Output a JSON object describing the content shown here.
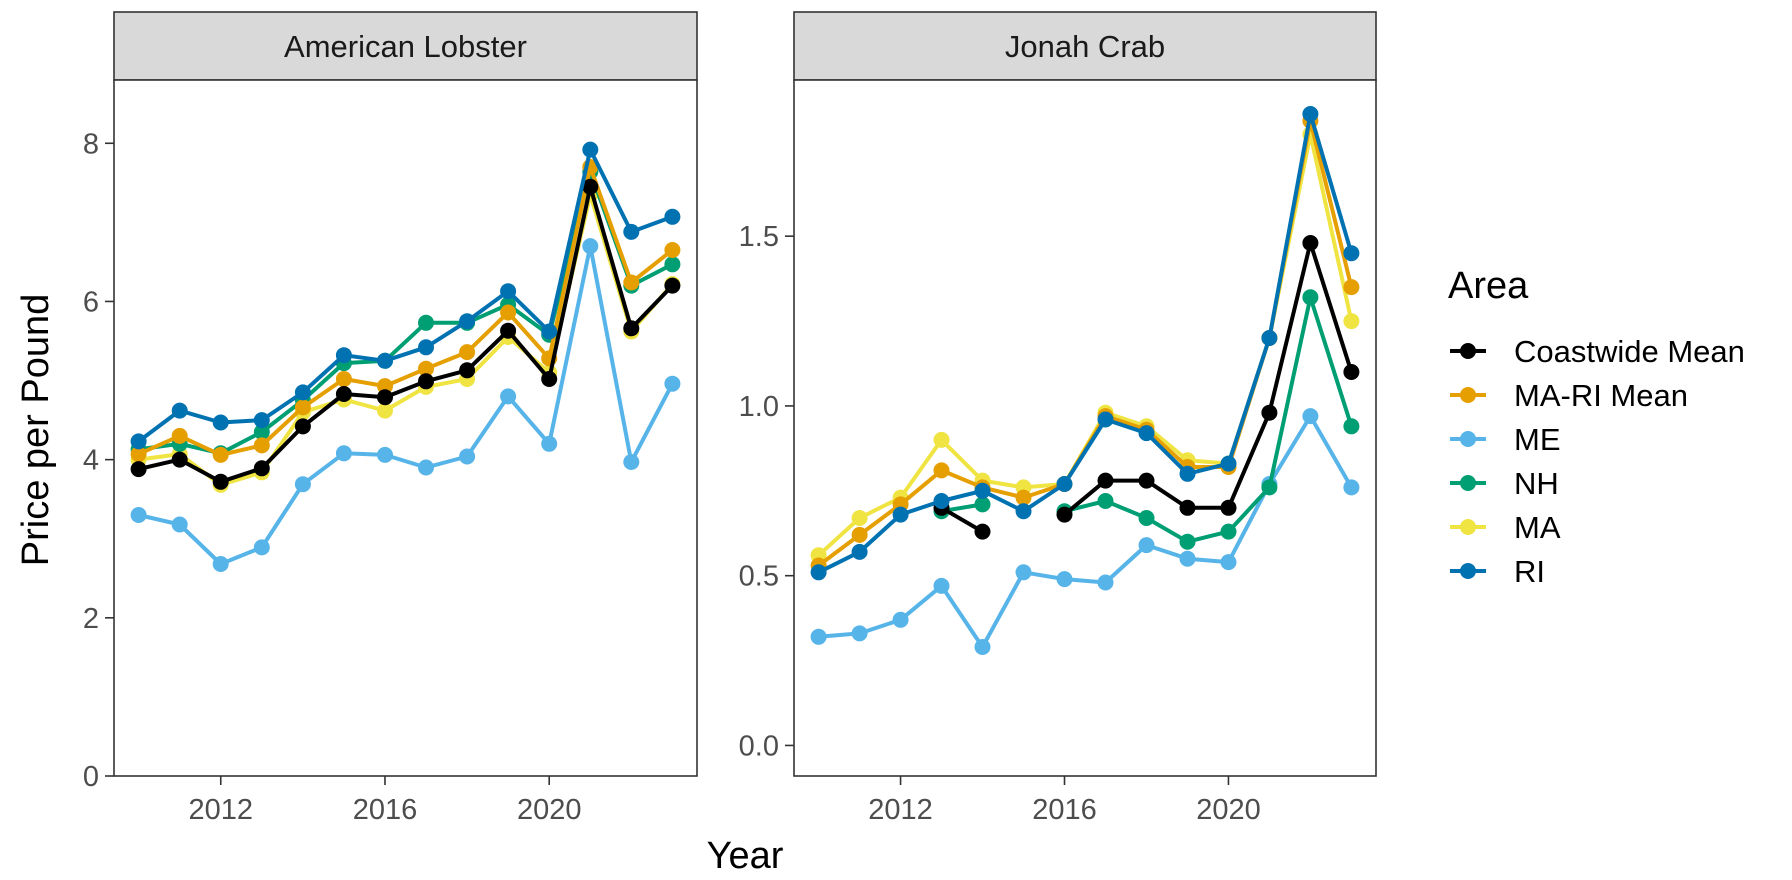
{
  "axes": {
    "ylabel": "Price per Pound",
    "xlabel": "Year"
  },
  "legend": {
    "title": "Area",
    "placement": "right",
    "entries": [
      {
        "label": "Coastwide Mean",
        "color": "#000000"
      },
      {
        "label": "MA-RI Mean",
        "color": "#E69F00"
      },
      {
        "label": "ME",
        "color": "#56B4E9"
      },
      {
        "label": "NH",
        "color": "#009E73"
      },
      {
        "label": "MA",
        "color": "#F0E442"
      },
      {
        "label": "RI",
        "color": "#0072B2"
      }
    ]
  },
  "chart_data": [
    {
      "type": "line",
      "title": "American Lobster",
      "x": [
        2010,
        2011,
        2012,
        2013,
        2014,
        2015,
        2016,
        2017,
        2018,
        2019,
        2020,
        2021,
        2022,
        2023
      ],
      "xticks": [
        2012,
        2016,
        2020
      ],
      "ylim": [
        0,
        8.8
      ],
      "yticks": [
        0,
        2,
        4,
        6,
        8
      ],
      "ytick_labels": [
        "0",
        "2",
        "4",
        "6",
        "8"
      ],
      "grid": false,
      "series": [
        {
          "name": "ME",
          "color": "#56B4E9",
          "values": [
            3.3,
            3.18,
            2.68,
            2.89,
            3.69,
            4.08,
            4.06,
            3.9,
            4.04,
            4.8,
            4.2,
            6.7,
            3.97,
            4.96
          ]
        },
        {
          "name": "MA",
          "color": "#F0E442",
          "values": [
            4.0,
            4.07,
            3.68,
            3.84,
            4.6,
            4.76,
            4.62,
            4.92,
            5.02,
            5.55,
            5.1,
            7.35,
            5.62,
            6.22
          ]
        },
        {
          "name": "NH",
          "color": "#009E73",
          "values": [
            4.13,
            4.2,
            4.08,
            4.35,
            4.75,
            5.22,
            5.25,
            5.73,
            5.73,
            5.96,
            5.58,
            7.64,
            6.2,
            6.47
          ]
        },
        {
          "name": "MA-RI Mean",
          "color": "#E69F00",
          "values": [
            4.07,
            4.3,
            4.06,
            4.18,
            4.66,
            5.02,
            4.93,
            5.15,
            5.36,
            5.86,
            5.28,
            7.7,
            6.24,
            6.65
          ]
        },
        {
          "name": "Coastwide Mean",
          "color": "#000000",
          "values": [
            3.88,
            4.0,
            3.72,
            3.89,
            4.42,
            4.83,
            4.79,
            4.99,
            5.13,
            5.63,
            5.02,
            7.45,
            5.66,
            6.2
          ]
        },
        {
          "name": "RI",
          "color": "#0072B2",
          "values": [
            4.23,
            4.62,
            4.47,
            4.5,
            4.85,
            5.32,
            5.25,
            5.42,
            5.75,
            6.13,
            5.62,
            7.92,
            6.88,
            7.07
          ]
        }
      ]
    },
    {
      "type": "line",
      "title": "Jonah Crab",
      "x": [
        2010,
        2011,
        2012,
        2013,
        2014,
        2015,
        2016,
        2017,
        2018,
        2019,
        2020,
        2021,
        2022,
        2023
      ],
      "xticks": [
        2012,
        2016,
        2020
      ],
      "ylim": [
        -0.09,
        1.96
      ],
      "yticks": [
        0,
        0.5,
        1,
        1.5
      ],
      "ytick_labels": [
        "0.0",
        "0.5",
        "1.0",
        "1.5"
      ],
      "grid": false,
      "series": [
        {
          "name": "ME",
          "color": "#56B4E9",
          "values": [
            0.32,
            0.33,
            0.37,
            0.47,
            0.29,
            0.51,
            0.49,
            0.48,
            0.59,
            0.55,
            0.54,
            0.77,
            0.97,
            0.76
          ]
        },
        {
          "name": "MA",
          "color": "#F0E442",
          "values": [
            0.56,
            0.67,
            0.73,
            0.9,
            0.78,
            0.76,
            0.77,
            0.98,
            0.94,
            0.84,
            0.83,
            1.2,
            1.8,
            1.25
          ]
        },
        {
          "name": "NH",
          "color": "#009E73",
          "values": [
            null,
            null,
            null,
            0.69,
            0.71,
            null,
            0.69,
            0.72,
            0.67,
            0.6,
            0.63,
            0.76,
            1.32,
            0.94
          ]
        },
        {
          "name": "MA-RI Mean",
          "color": "#E69F00",
          "values": [
            0.53,
            0.62,
            0.71,
            0.81,
            0.76,
            0.73,
            0.77,
            0.97,
            0.93,
            0.82,
            0.82,
            1.2,
            1.84,
            1.35
          ]
        },
        {
          "name": "Coastwide Mean",
          "color": "#000000",
          "values": [
            null,
            null,
            null,
            0.7,
            0.63,
            null,
            0.68,
            0.78,
            0.78,
            0.7,
            0.7,
            0.98,
            1.48,
            1.1
          ]
        },
        {
          "name": "RI",
          "color": "#0072B2",
          "values": [
            0.51,
            0.57,
            0.68,
            0.72,
            0.75,
            0.69,
            0.77,
            0.96,
            0.92,
            0.8,
            0.83,
            1.2,
            1.86,
            1.45
          ]
        }
      ]
    }
  ]
}
